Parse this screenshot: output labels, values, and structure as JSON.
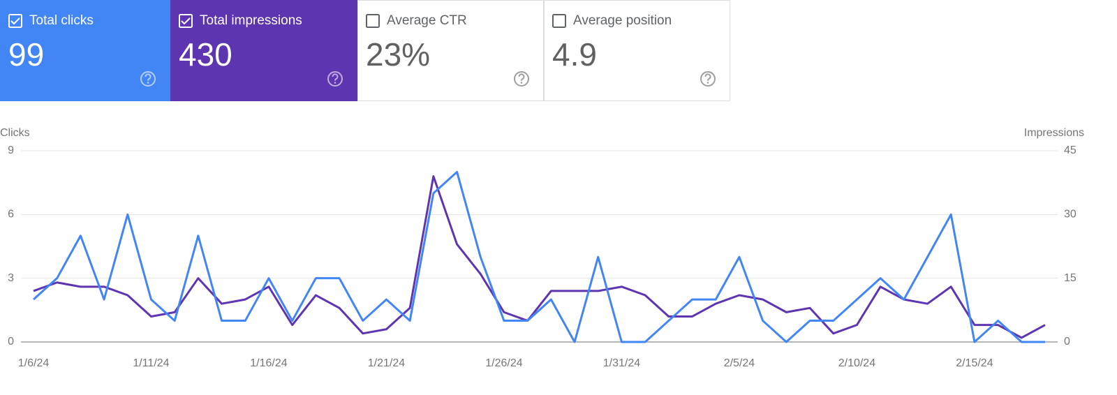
{
  "cards": [
    {
      "label": "Total clicks",
      "value": 99,
      "checked": true,
      "color": "#4285f4"
    },
    {
      "label": "Total impressions",
      "value": 430,
      "checked": true,
      "color": "#5e35b1"
    },
    {
      "label": "Average CTR",
      "value": 23,
      "value_label": "23%",
      "checked": false,
      "color": "#ffffff"
    },
    {
      "label": "Average position",
      "value": 4.9,
      "checked": false,
      "color": "#ffffff"
    }
  ],
  "chart_data": {
    "type": "line",
    "y_label": "Clicks",
    "y2_label": "Impressions",
    "categories": [
      "1/6/24",
      null,
      null,
      null,
      null,
      "1/11/24",
      null,
      null,
      null,
      null,
      "1/16/24",
      null,
      null,
      null,
      null,
      "1/21/24",
      null,
      null,
      null,
      null,
      "1/26/24",
      null,
      null,
      null,
      null,
      "1/31/24",
      null,
      null,
      null,
      null,
      "2/5/24",
      null,
      null,
      null,
      null,
      "2/10/24",
      null,
      null,
      null,
      null,
      "2/15/24",
      null,
      null,
      null
    ],
    "series": [
      {
        "color": "#5e35b1",
        "axis": "y2",
        "values": [
          12,
          14,
          13,
          13,
          11,
          6,
          7,
          15,
          9,
          10,
          13,
          4,
          11,
          8,
          2,
          3,
          8,
          39,
          23,
          16,
          7,
          5,
          12,
          12,
          12,
          13,
          11,
          6,
          6,
          9,
          11,
          10,
          7,
          8,
          2,
          4,
          13,
          10,
          9,
          13,
          4,
          4,
          1,
          4
        ]
      },
      {
        "color": "#4285f4",
        "axis": "y",
        "values": [
          2,
          3,
          5,
          2,
          6,
          2,
          1,
          5,
          1,
          1,
          3,
          1,
          3,
          3,
          1,
          2,
          1,
          7,
          8,
          4,
          1,
          1,
          2,
          0,
          4,
          0,
          0,
          1,
          2,
          2,
          4,
          1,
          0,
          1,
          1,
          2,
          3,
          2,
          4,
          6,
          0,
          1,
          0,
          0
        ]
      }
    ],
    "ylim": [
      0,
      9
    ],
    "yticks": [
      0,
      3,
      6,
      9
    ],
    "y2lim": [
      0,
      45
    ],
    "y2ticks": [
      0,
      15,
      30,
      45
    ],
    "grid": true
  }
}
